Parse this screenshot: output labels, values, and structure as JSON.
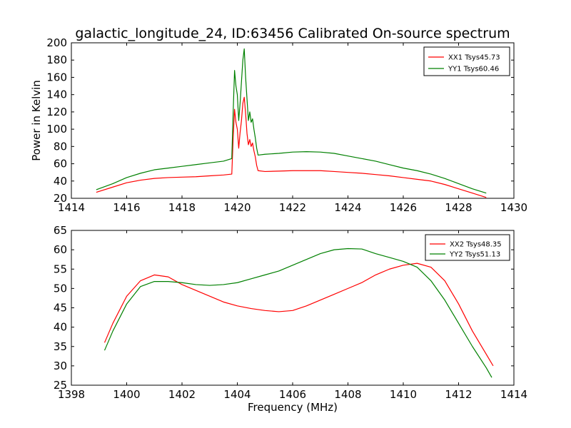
{
  "chart_data": [
    {
      "type": "line",
      "title": "galactic_longitude_24, ID:63456 Calibrated On-source spectrum",
      "xlabel": "",
      "ylabel": "Power in Kelvin",
      "xlim": [
        1414,
        1430
      ],
      "ylim": [
        20,
        200
      ],
      "xticks": [
        1414,
        1416,
        1418,
        1420,
        1422,
        1424,
        1426,
        1428,
        1430
      ],
      "yticks": [
        20,
        40,
        60,
        80,
        100,
        120,
        140,
        160,
        180,
        200
      ],
      "legend_position": "top-right",
      "series": [
        {
          "name": "XX1 Tsys45.73",
          "color": "#ff0000",
          "x": [
            1414.9,
            1415.5,
            1416,
            1416.5,
            1417,
            1417.5,
            1418,
            1418.5,
            1419,
            1419.5,
            1419.8,
            1419.85,
            1419.9,
            1419.95,
            1420.0,
            1420.05,
            1420.1,
            1420.15,
            1420.2,
            1420.25,
            1420.3,
            1420.35,
            1420.4,
            1420.45,
            1420.5,
            1420.55,
            1420.6,
            1420.65,
            1420.7,
            1420.75,
            1421,
            1421.5,
            1422,
            1422.5,
            1423,
            1423.5,
            1424,
            1424.5,
            1425,
            1425.5,
            1426,
            1426.5,
            1427,
            1427.5,
            1428,
            1428.5,
            1429
          ],
          "y": [
            27,
            33,
            38,
            41,
            43,
            44,
            44.5,
            45,
            46,
            47,
            48,
            90,
            123,
            108,
            100,
            78,
            96,
            110,
            130,
            137,
            118,
            95,
            82,
            88,
            80,
            84,
            75,
            68,
            58,
            52,
            51,
            51.5,
            52,
            52,
            52,
            51,
            50,
            49,
            47.5,
            46,
            44,
            42,
            40,
            36,
            31,
            26,
            21
          ]
        },
        {
          "name": "YY1 Tsys60.46",
          "color": "#008000",
          "x": [
            1414.9,
            1415.5,
            1416,
            1416.5,
            1417,
            1417.5,
            1418,
            1418.5,
            1419,
            1419.5,
            1419.8,
            1419.85,
            1419.9,
            1419.95,
            1420.0,
            1420.05,
            1420.1,
            1420.15,
            1420.2,
            1420.25,
            1420.3,
            1420.35,
            1420.4,
            1420.45,
            1420.5,
            1420.55,
            1420.6,
            1420.65,
            1420.7,
            1420.75,
            1421,
            1421.5,
            1422,
            1422.5,
            1423,
            1423.5,
            1424,
            1424.5,
            1425,
            1425.5,
            1426,
            1426.5,
            1427,
            1427.5,
            1428,
            1428.5,
            1429
          ],
          "y": [
            30,
            37,
            44,
            49,
            53,
            55,
            57,
            59,
            61,
            63,
            66,
            120,
            168,
            150,
            140,
            110,
            130,
            155,
            180,
            193,
            160,
            135,
            110,
            120,
            108,
            112,
            100,
            90,
            78,
            70,
            71,
            72,
            73.5,
            74,
            73.5,
            72,
            69,
            66,
            63,
            59,
            55,
            52,
            48,
            43,
            37,
            31,
            26
          ]
        }
      ]
    },
    {
      "type": "line",
      "title": "",
      "xlabel": "Frequency (MHz)",
      "ylabel": "",
      "xlim": [
        1398,
        1414
      ],
      "ylim": [
        25,
        65
      ],
      "xticks": [
        1398,
        1400,
        1402,
        1404,
        1406,
        1408,
        1410,
        1412,
        1414
      ],
      "yticks": [
        25,
        30,
        35,
        40,
        45,
        50,
        55,
        60,
        65
      ],
      "legend_position": "top-right",
      "series": [
        {
          "name": "XX2 Tsys48.35",
          "color": "#ff0000",
          "x": [
            1399.2,
            1399.5,
            1400,
            1400.5,
            1401,
            1401.5,
            1402,
            1402.5,
            1403,
            1403.5,
            1404,
            1404.5,
            1405,
            1405.5,
            1406,
            1406.5,
            1407,
            1407.5,
            1408,
            1408.5,
            1409,
            1409.5,
            1410,
            1410.5,
            1411,
            1411.5,
            1412,
            1412.5,
            1413,
            1413.25
          ],
          "y": [
            36,
            41,
            48,
            52,
            53.5,
            53,
            51,
            49.5,
            48,
            46.5,
            45.5,
            44.8,
            44.3,
            44,
            44.3,
            45.5,
            47,
            48.5,
            50,
            51.5,
            53.5,
            55,
            56,
            56.5,
            55.5,
            52,
            46,
            39,
            33,
            30
          ]
        },
        {
          "name": "YY2 Tsys51.13",
          "color": "#008000",
          "x": [
            1399.2,
            1399.5,
            1400,
            1400.5,
            1401,
            1401.5,
            1402,
            1402.5,
            1403,
            1403.5,
            1404,
            1404.5,
            1405,
            1405.5,
            1406,
            1406.5,
            1407,
            1407.5,
            1408,
            1408.5,
            1409,
            1409.5,
            1410,
            1410.5,
            1411,
            1411.5,
            1412,
            1412.5,
            1413,
            1413.2
          ],
          "y": [
            34,
            39,
            46,
            50.5,
            51.8,
            51.8,
            51.5,
            51,
            50.8,
            51,
            51.5,
            52.5,
            53.5,
            54.5,
            56,
            57.5,
            59,
            60,
            60.3,
            60.2,
            59,
            58,
            57,
            55.5,
            52,
            47,
            41,
            35,
            29.5,
            27
          ]
        }
      ]
    }
  ]
}
